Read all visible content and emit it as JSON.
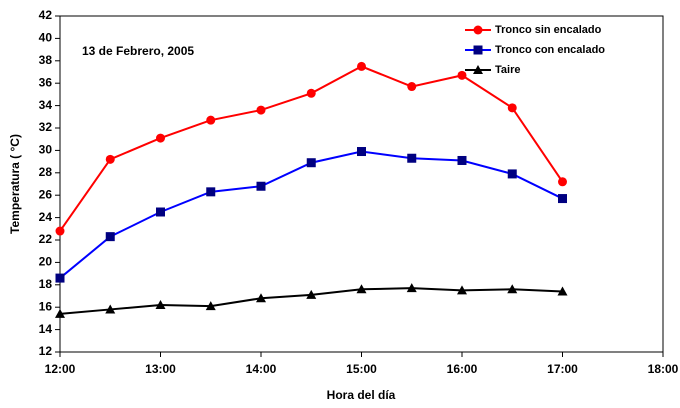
{
  "chart_data": {
    "type": "line",
    "annotation": "13 de Febrero, 2005",
    "x_label": "Hora del día",
    "y_label": "Temperatura ( °C)",
    "x": [
      12,
      12.5,
      13,
      13.5,
      14,
      14.5,
      15,
      15.5,
      16,
      16.5,
      17
    ],
    "series": [
      {
        "name": "Tronco sin encalado",
        "color": "#ff0000",
        "marker": "circle",
        "line_color": "#ff0000",
        "values": [
          22.8,
          29.2,
          31.1,
          32.7,
          33.6,
          35.1,
          37.5,
          35.7,
          36.7,
          33.8,
          27.2
        ]
      },
      {
        "name": "Tronco con encalado",
        "color": "#000080",
        "marker": "square",
        "line_color": "#0000ff",
        "values": [
          18.6,
          22.3,
          24.5,
          26.3,
          26.8,
          28.9,
          29.9,
          29.3,
          29.1,
          27.9,
          25.7
        ]
      },
      {
        "name": "Taire",
        "color": "#000000",
        "marker": "triangle",
        "line_color": "#000000",
        "values": [
          15.4,
          15.8,
          16.2,
          16.1,
          16.8,
          17.1,
          17.6,
          17.7,
          17.5,
          17.6,
          17.4
        ]
      }
    ],
    "xlim": [
      12,
      18
    ],
    "xticks": [
      {
        "value": 12,
        "label": "12:00"
      },
      {
        "value": 13,
        "label": "13:00"
      },
      {
        "value": 14,
        "label": "14:00"
      },
      {
        "value": 15,
        "label": "15:00"
      },
      {
        "value": 16,
        "label": "16:00"
      },
      {
        "value": 17,
        "label": "17:00"
      },
      {
        "value": 18,
        "label": "18:00"
      }
    ],
    "ylim": [
      12,
      42
    ],
    "yticks": [
      12,
      14,
      16,
      18,
      20,
      22,
      24,
      26,
      28,
      30,
      32,
      34,
      36,
      38,
      40,
      42
    ],
    "grid": false,
    "legend": "top-right"
  }
}
